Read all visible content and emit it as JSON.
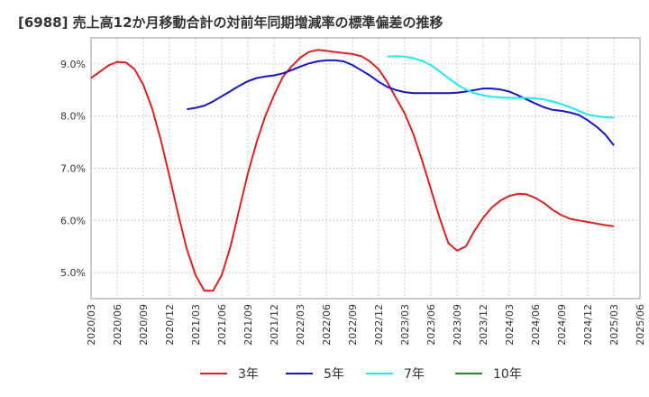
{
  "chart_data": {
    "type": "line",
    "title": "[6988]  売上高12か月移動合計の対前年同期増減率の標準偏差の推移",
    "xlabel": "",
    "ylabel": "",
    "ylim": [
      4.5,
      9.5
    ],
    "yticks": [
      5.0,
      6.0,
      7.0,
      8.0,
      9.0
    ],
    "ytick_labels": [
      "5.0%",
      "6.0%",
      "7.0%",
      "8.0%",
      "9.0%"
    ],
    "x_start": "2020/03",
    "x_end": "2025/06",
    "xtick_labels": [
      "2020/03",
      "2020/06",
      "2020/09",
      "2020/12",
      "2021/03",
      "2021/06",
      "2021/09",
      "2021/12",
      "2022/03",
      "2022/06",
      "2022/09",
      "2022/12",
      "2023/03",
      "2023/06",
      "2023/09",
      "2023/12",
      "2024/03",
      "2024/06",
      "2024/09",
      "2024/12",
      "2025/03",
      "2025/06"
    ],
    "grid": true,
    "legend_position": "bottom",
    "series": [
      {
        "name": "3年",
        "color": "#e02020",
        "data": [
          [
            "2020/03",
            8.73
          ],
          [
            "2020/04",
            8.85
          ],
          [
            "2020/05",
            8.97
          ],
          [
            "2020/06",
            9.04
          ],
          [
            "2020/07",
            9.03
          ],
          [
            "2020/08",
            8.9
          ],
          [
            "2020/09",
            8.6
          ],
          [
            "2020/10",
            8.15
          ],
          [
            "2020/11",
            7.55
          ],
          [
            "2020/12",
            6.85
          ],
          [
            "2021/01",
            6.12
          ],
          [
            "2021/02",
            5.45
          ],
          [
            "2021/03",
            4.95
          ],
          [
            "2021/04",
            4.65
          ],
          [
            "2021/05",
            4.65
          ],
          [
            "2021/06",
            4.95
          ],
          [
            "2021/07",
            5.5
          ],
          [
            "2021/08",
            6.2
          ],
          [
            "2021/09",
            6.9
          ],
          [
            "2021/10",
            7.5
          ],
          [
            "2021/11",
            8.0
          ],
          [
            "2021/12",
            8.4
          ],
          [
            "2022/01",
            8.75
          ],
          [
            "2022/02",
            8.95
          ],
          [
            "2022/03",
            9.12
          ],
          [
            "2022/04",
            9.23
          ],
          [
            "2022/05",
            9.27
          ],
          [
            "2022/06",
            9.25
          ],
          [
            "2022/07",
            9.23
          ],
          [
            "2022/08",
            9.21
          ],
          [
            "2022/09",
            9.19
          ],
          [
            "2022/10",
            9.15
          ],
          [
            "2022/11",
            9.05
          ],
          [
            "2022/12",
            8.9
          ],
          [
            "2023/01",
            8.65
          ],
          [
            "2023/02",
            8.35
          ],
          [
            "2023/03",
            8.05
          ],
          [
            "2023/04",
            7.65
          ],
          [
            "2023/05",
            7.15
          ],
          [
            "2023/06",
            6.6
          ],
          [
            "2023/07",
            6.05
          ],
          [
            "2023/08",
            5.57
          ],
          [
            "2023/09",
            5.42
          ],
          [
            "2023/10",
            5.5
          ],
          [
            "2023/11",
            5.8
          ],
          [
            "2023/12",
            6.05
          ],
          [
            "2024/01",
            6.25
          ],
          [
            "2024/02",
            6.38
          ],
          [
            "2024/03",
            6.47
          ],
          [
            "2024/04",
            6.51
          ],
          [
            "2024/05",
            6.5
          ],
          [
            "2024/06",
            6.43
          ],
          [
            "2024/07",
            6.33
          ],
          [
            "2024/08",
            6.2
          ],
          [
            "2024/09",
            6.1
          ],
          [
            "2024/10",
            6.03
          ],
          [
            "2024/11",
            6.0
          ],
          [
            "2024/12",
            5.97
          ],
          [
            "2025/01",
            5.94
          ],
          [
            "2025/02",
            5.91
          ],
          [
            "2025/03",
            5.89
          ]
        ]
      },
      {
        "name": "5年",
        "color": "#1515c8",
        "data": [
          [
            "2021/02",
            8.13
          ],
          [
            "2021/03",
            8.16
          ],
          [
            "2021/04",
            8.2
          ],
          [
            "2021/05",
            8.28
          ],
          [
            "2021/06",
            8.38
          ],
          [
            "2021/07",
            8.48
          ],
          [
            "2021/08",
            8.58
          ],
          [
            "2021/09",
            8.67
          ],
          [
            "2021/10",
            8.73
          ],
          [
            "2021/11",
            8.76
          ],
          [
            "2021/12",
            8.78
          ],
          [
            "2022/01",
            8.82
          ],
          [
            "2022/02",
            8.88
          ],
          [
            "2022/03",
            8.95
          ],
          [
            "2022/04",
            9.01
          ],
          [
            "2022/05",
            9.05
          ],
          [
            "2022/06",
            9.07
          ],
          [
            "2022/07",
            9.07
          ],
          [
            "2022/08",
            9.05
          ],
          [
            "2022/09",
            8.98
          ],
          [
            "2022/10",
            8.88
          ],
          [
            "2022/11",
            8.78
          ],
          [
            "2022/12",
            8.66
          ],
          [
            "2023/01",
            8.56
          ],
          [
            "2023/02",
            8.5
          ],
          [
            "2023/03",
            8.46
          ],
          [
            "2023/04",
            8.44
          ],
          [
            "2023/05",
            8.44
          ],
          [
            "2023/06",
            8.44
          ],
          [
            "2023/07",
            8.44
          ],
          [
            "2023/08",
            8.44
          ],
          [
            "2023/09",
            8.45
          ],
          [
            "2023/10",
            8.47
          ],
          [
            "2023/11",
            8.5
          ],
          [
            "2023/12",
            8.53
          ],
          [
            "2024/01",
            8.53
          ],
          [
            "2024/02",
            8.51
          ],
          [
            "2024/03",
            8.47
          ],
          [
            "2024/04",
            8.4
          ],
          [
            "2024/05",
            8.32
          ],
          [
            "2024/06",
            8.24
          ],
          [
            "2024/07",
            8.17
          ],
          [
            "2024/08",
            8.12
          ],
          [
            "2024/09",
            8.1
          ],
          [
            "2024/10",
            8.07
          ],
          [
            "2024/11",
            8.02
          ],
          [
            "2024/12",
            7.92
          ],
          [
            "2025/01",
            7.8
          ],
          [
            "2025/02",
            7.65
          ],
          [
            "2025/03",
            7.44
          ]
        ]
      },
      {
        "name": "7年",
        "color": "#20e8f0",
        "data": [
          [
            "2023/01",
            9.14
          ],
          [
            "2023/02",
            9.15
          ],
          [
            "2023/03",
            9.14
          ],
          [
            "2023/04",
            9.11
          ],
          [
            "2023/05",
            9.06
          ],
          [
            "2023/06",
            8.98
          ],
          [
            "2023/07",
            8.86
          ],
          [
            "2023/08",
            8.73
          ],
          [
            "2023/09",
            8.61
          ],
          [
            "2023/10",
            8.51
          ],
          [
            "2023/11",
            8.44
          ],
          [
            "2023/12",
            8.4
          ],
          [
            "2024/01",
            8.37
          ],
          [
            "2024/02",
            8.36
          ],
          [
            "2024/03",
            8.35
          ],
          [
            "2024/04",
            8.35
          ],
          [
            "2024/05",
            8.35
          ],
          [
            "2024/06",
            8.34
          ],
          [
            "2024/07",
            8.32
          ],
          [
            "2024/08",
            8.28
          ],
          [
            "2024/09",
            8.23
          ],
          [
            "2024/10",
            8.17
          ],
          [
            "2024/11",
            8.1
          ],
          [
            "2024/12",
            8.03
          ],
          [
            "2025/01",
            8.0
          ],
          [
            "2025/02",
            7.98
          ],
          [
            "2025/03",
            7.97
          ]
        ]
      },
      {
        "name": "10年",
        "color": "#228b22",
        "data": []
      }
    ]
  }
}
